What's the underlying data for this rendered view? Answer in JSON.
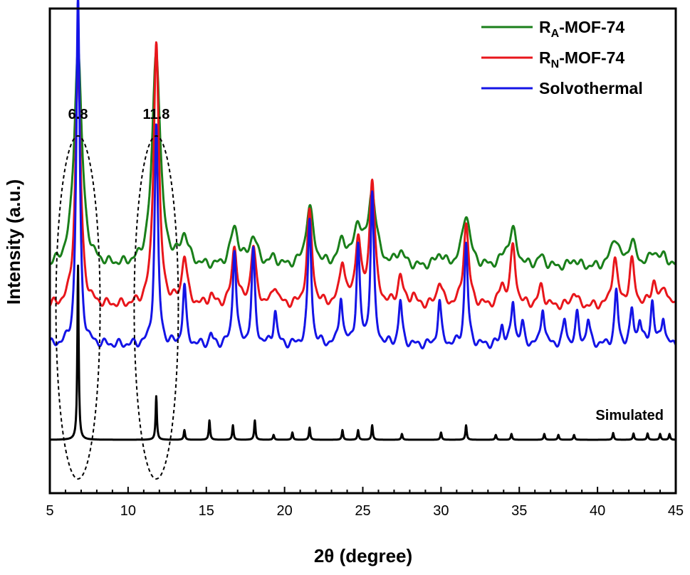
{
  "chart_data": {
    "type": "line",
    "title": "",
    "xlabel": "2θ (degree)",
    "ylabel": "Intensity (a.u.)",
    "xlim": [
      5,
      45
    ],
    "xticks": [
      5,
      10,
      15,
      20,
      25,
      30,
      35,
      40,
      45
    ],
    "yticks_shown": false,
    "grid": false,
    "legend": {
      "position": "top-right",
      "entries": [
        {
          "name": "RA-MOF-74",
          "base": "R",
          "sub": "A",
          "rest": "-MOF-74"
        },
        {
          "name": "RN-MOF-74",
          "base": "R",
          "sub": "N",
          "rest": "-MOF-74"
        },
        {
          "name": "Solvothermal",
          "base": "Solvothermal",
          "sub": "",
          "rest": ""
        }
      ]
    },
    "annotations": [
      {
        "text": "6.8",
        "x": 6.8,
        "marker": "dashed-ellipse"
      },
      {
        "text": "11.8",
        "x": 11.8,
        "marker": "dashed-ellipse"
      }
    ],
    "series": [
      {
        "name": "RA-MOF-74",
        "color": "#1a7f1a",
        "baseline": 0.355,
        "peak_width": 0.3,
        "peaks": [
          [
            6.8,
            0.45
          ],
          [
            11.8,
            0.45
          ],
          [
            13.6,
            0.06
          ],
          [
            16.8,
            0.08
          ],
          [
            18.0,
            0.06
          ],
          [
            19.3,
            0.015
          ],
          [
            21.6,
            0.12
          ],
          [
            23.7,
            0.05
          ],
          [
            24.7,
            0.08
          ],
          [
            25.6,
            0.15
          ],
          [
            27.4,
            0.03
          ],
          [
            29.9,
            0.025
          ],
          [
            31.6,
            0.11
          ],
          [
            34.1,
            0.02
          ],
          [
            34.6,
            0.07
          ],
          [
            36.4,
            0.02
          ],
          [
            38.5,
            0.015
          ],
          [
            41.1,
            0.06
          ],
          [
            42.2,
            0.05
          ],
          [
            43.6,
            0.03
          ],
          [
            44.3,
            0.02
          ]
        ]
      },
      {
        "name": "RN-MOF-74",
        "color": "#e8161b",
        "baseline": 0.275,
        "peak_width": 0.2,
        "peaks": [
          [
            6.8,
            0.5
          ],
          [
            11.8,
            0.55
          ],
          [
            13.6,
            0.1
          ],
          [
            15.3,
            0.02
          ],
          [
            16.8,
            0.12
          ],
          [
            18.0,
            0.12
          ],
          [
            19.4,
            0.04
          ],
          [
            21.6,
            0.19
          ],
          [
            23.7,
            0.09
          ],
          [
            24.7,
            0.14
          ],
          [
            25.6,
            0.26
          ],
          [
            27.4,
            0.06
          ],
          [
            28.2,
            0.02
          ],
          [
            29.9,
            0.05
          ],
          [
            31.6,
            0.17
          ],
          [
            33.9,
            0.04
          ],
          [
            34.6,
            0.12
          ],
          [
            36.4,
            0.04
          ],
          [
            38.5,
            0.03
          ],
          [
            41.1,
            0.1
          ],
          [
            42.2,
            0.09
          ],
          [
            43.6,
            0.05
          ],
          [
            44.3,
            0.04
          ]
        ]
      },
      {
        "name": "Solvothermal",
        "color": "#1414e6",
        "baseline": 0.195,
        "peak_width": 0.13,
        "peaks": [
          [
            6.8,
            0.72
          ],
          [
            11.8,
            0.45
          ],
          [
            13.6,
            0.12
          ],
          [
            15.3,
            0.02
          ],
          [
            16.8,
            0.2
          ],
          [
            18.0,
            0.19
          ],
          [
            19.4,
            0.07
          ],
          [
            21.6,
            0.26
          ],
          [
            23.6,
            0.1
          ],
          [
            24.7,
            0.2
          ],
          [
            25.6,
            0.31
          ],
          [
            27.4,
            0.09
          ],
          [
            29.9,
            0.09
          ],
          [
            31.6,
            0.21
          ],
          [
            33.9,
            0.04
          ],
          [
            34.6,
            0.09
          ],
          [
            35.2,
            0.04
          ],
          [
            36.5,
            0.08
          ],
          [
            37.9,
            0.05
          ],
          [
            38.7,
            0.06
          ],
          [
            39.4,
            0.05
          ],
          [
            41.2,
            0.11
          ],
          [
            42.2,
            0.07
          ],
          [
            42.7,
            0.05
          ],
          [
            43.5,
            0.09
          ],
          [
            44.2,
            0.06
          ]
        ]
      },
      {
        "name": "Simulated",
        "label": "Simulated",
        "color": "#000000",
        "baseline": 0.0,
        "peak_width": 0.05,
        "peaks": [
          [
            6.8,
            0.36
          ],
          [
            11.8,
            0.09
          ],
          [
            13.6,
            0.02
          ],
          [
            15.2,
            0.04
          ],
          [
            16.7,
            0.03
          ],
          [
            18.1,
            0.04
          ],
          [
            19.3,
            0.01
          ],
          [
            20.5,
            0.015
          ],
          [
            21.6,
            0.025
          ],
          [
            23.7,
            0.02
          ],
          [
            24.7,
            0.02
          ],
          [
            25.6,
            0.03
          ],
          [
            27.5,
            0.012
          ],
          [
            30.0,
            0.015
          ],
          [
            31.6,
            0.03
          ],
          [
            33.5,
            0.01
          ],
          [
            34.5,
            0.012
          ],
          [
            36.6,
            0.012
          ],
          [
            37.5,
            0.01
          ],
          [
            38.5,
            0.01
          ],
          [
            41.0,
            0.014
          ],
          [
            42.3,
            0.013
          ],
          [
            43.2,
            0.013
          ],
          [
            44.0,
            0.012
          ],
          [
            44.6,
            0.012
          ]
        ]
      }
    ]
  }
}
